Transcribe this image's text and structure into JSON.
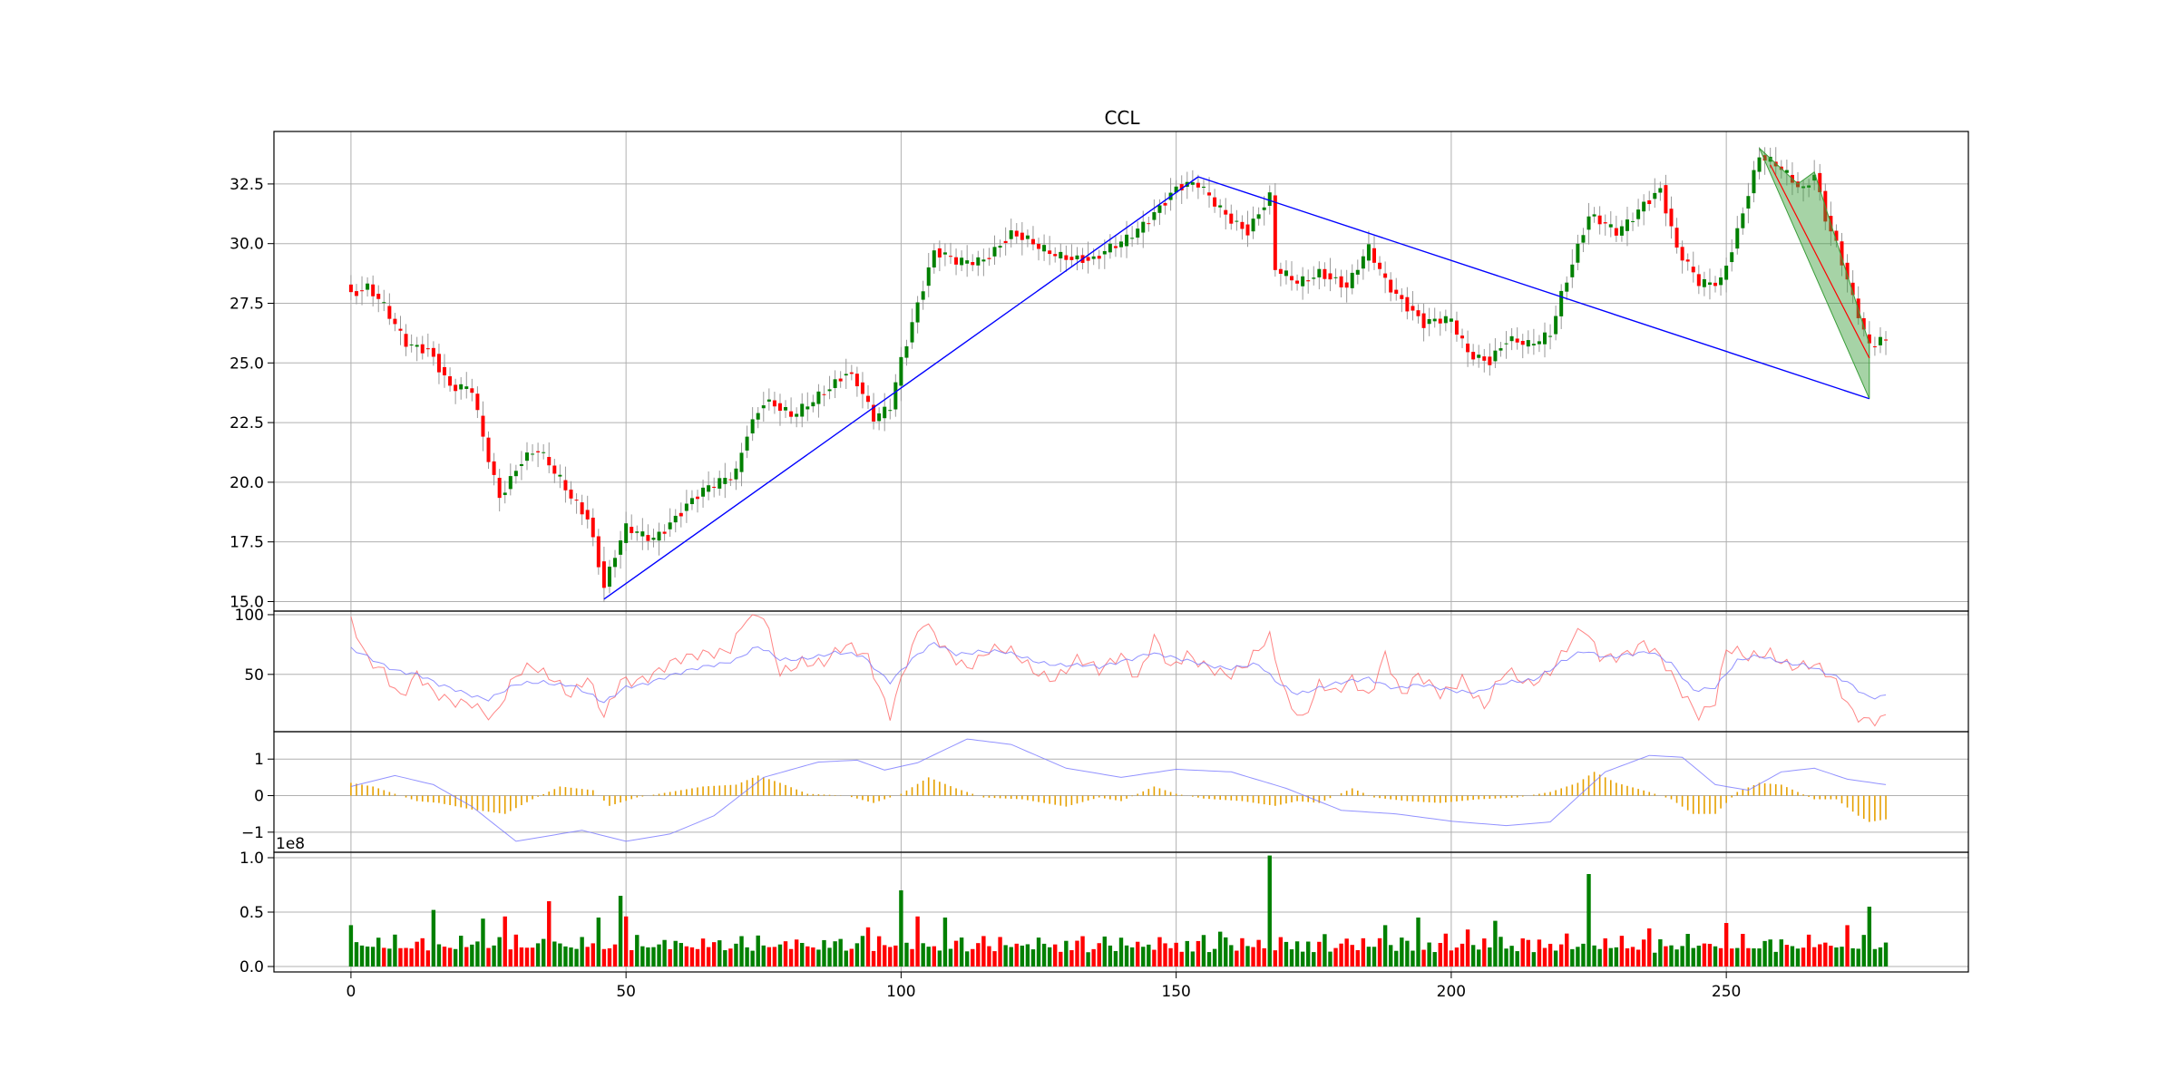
{
  "chart_data": [
    {
      "type": "candlestick",
      "title": "CCL",
      "grid": true,
      "xlim": [
        -14,
        294
      ],
      "ylim": [
        14.6,
        34.7
      ],
      "x_ticks": [
        0,
        50,
        100,
        150,
        200,
        250
      ],
      "y_ticks": [
        "15.0",
        "17.5",
        "20.0",
        "22.5",
        "25.0",
        "27.5",
        "30.0",
        "32.5"
      ],
      "colors": {
        "up": "#008000",
        "down": "#ff0000",
        "trendline": "#0000ff",
        "pattern_fill": "#3a9e3a"
      },
      "close_anchors": [
        [
          0,
          27.8
        ],
        [
          3,
          28.0
        ],
        [
          6,
          27.3
        ],
        [
          10,
          26.0
        ],
        [
          14,
          25.6
        ],
        [
          18,
          23.8
        ],
        [
          22,
          23.9
        ],
        [
          24,
          22.0
        ],
        [
          27,
          19.5
        ],
        [
          31,
          20.8
        ],
        [
          34,
          21.2
        ],
        [
          38,
          20.2
        ],
        [
          43,
          18.6
        ],
        [
          46,
          15.5
        ],
        [
          48,
          16.8
        ],
        [
          50,
          18.0
        ],
        [
          55,
          17.8
        ],
        [
          60,
          18.7
        ],
        [
          65,
          19.7
        ],
        [
          70,
          20.6
        ],
        [
          72,
          22.2
        ],
        [
          75,
          23.3
        ],
        [
          80,
          22.7
        ],
        [
          85,
          23.8
        ],
        [
          90,
          24.5
        ],
        [
          92,
          24.0
        ],
        [
          95,
          22.6
        ],
        [
          98,
          23.3
        ],
        [
          100,
          25.3
        ],
        [
          103,
          27.5
        ],
        [
          106,
          29.5
        ],
        [
          110,
          29.2
        ],
        [
          115,
          29.5
        ],
        [
          120,
          30.3
        ],
        [
          125,
          29.8
        ],
        [
          130,
          29.6
        ],
        [
          135,
          29.2
        ],
        [
          140,
          30.0
        ],
        [
          145,
          31.2
        ],
        [
          150,
          32.2
        ],
        [
          154,
          32.4
        ],
        [
          158,
          31.6
        ],
        [
          163,
          30.5
        ],
        [
          167,
          31.8
        ],
        [
          168,
          28.8
        ],
        [
          172,
          28.5
        ],
        [
          176,
          28.9
        ],
        [
          181,
          28.0
        ],
        [
          185,
          29.8
        ],
        [
          188,
          28.6
        ],
        [
          192,
          27.4
        ],
        [
          195,
          26.5
        ],
        [
          200,
          26.8
        ],
        [
          203,
          25.6
        ],
        [
          207,
          25.1
        ],
        [
          210,
          25.8
        ],
        [
          214,
          25.7
        ],
        [
          218,
          26.4
        ],
        [
          220,
          28.0
        ],
        [
          225,
          31.0
        ],
        [
          230,
          30.5
        ],
        [
          235,
          31.8
        ],
        [
          238,
          32.2
        ],
        [
          241,
          29.6
        ],
        [
          245,
          28.4
        ],
        [
          249,
          28.6
        ],
        [
          252,
          30.5
        ],
        [
          256,
          33.5
        ],
        [
          260,
          33.2
        ],
        [
          264,
          32.4
        ],
        [
          266,
          33.0
        ],
        [
          268,
          31.0
        ],
        [
          270,
          29.8
        ],
        [
          273,
          27.6
        ],
        [
          276,
          25.8
        ],
        [
          278,
          26.2
        ],
        [
          279,
          26.0
        ]
      ],
      "trendlines": [
        {
          "x": [
            46,
            154
          ],
          "y": [
            15.1,
            32.8
          ]
        },
        {
          "x": [
            154,
            276
          ],
          "y": [
            32.8,
            23.5
          ]
        }
      ],
      "pattern": {
        "upper": [
          [
            256,
            34.0
          ],
          [
            263,
            32.5
          ],
          [
            266,
            33.0
          ],
          [
            276,
            25.8
          ]
        ],
        "lower": [
          [
            256,
            34.0
          ],
          [
            276,
            23.5
          ]
        ],
        "redline": [
          [
            258,
            33.3
          ],
          [
            276,
            25.2
          ]
        ]
      }
    },
    {
      "type": "line",
      "ylim": [
        2,
        103
      ],
      "y_ticks": [
        "100",
        "50"
      ],
      "series_colors": [
        "#ff6666",
        "#7777ff"
      ],
      "anchors_red": [
        [
          0,
          90
        ],
        [
          3,
          60
        ],
        [
          6,
          55
        ],
        [
          9,
          35
        ],
        [
          12,
          50
        ],
        [
          15,
          30
        ],
        [
          18,
          25
        ],
        [
          22,
          30
        ],
        [
          26,
          15
        ],
        [
          30,
          45
        ],
        [
          33,
          55
        ],
        [
          37,
          50
        ],
        [
          40,
          35
        ],
        [
          43,
          45
        ],
        [
          46,
          10
        ],
        [
          49,
          45
        ],
        [
          53,
          50
        ],
        [
          57,
          55
        ],
        [
          61,
          60
        ],
        [
          65,
          70
        ],
        [
          69,
          75
        ],
        [
          72,
          97
        ],
        [
          75,
          95
        ],
        [
          78,
          50
        ],
        [
          82,
          65
        ],
        [
          86,
          60
        ],
        [
          90,
          70
        ],
        [
          94,
          65
        ],
        [
          98,
          20
        ],
        [
          101,
          60
        ],
        [
          104,
          90
        ],
        [
          108,
          70
        ],
        [
          112,
          60
        ],
        [
          116,
          70
        ],
        [
          120,
          65
        ],
        [
          124,
          55
        ],
        [
          128,
          50
        ],
        [
          132,
          60
        ],
        [
          136,
          50
        ],
        [
          140,
          70
        ],
        [
          143,
          50
        ],
        [
          146,
          80
        ],
        [
          149,
          50
        ],
        [
          152,
          65
        ],
        [
          156,
          60
        ],
        [
          160,
          50
        ],
        [
          163,
          55
        ],
        [
          167,
          80
        ],
        [
          170,
          35
        ],
        [
          173,
          15
        ],
        [
          176,
          40
        ],
        [
          179,
          30
        ],
        [
          182,
          45
        ],
        [
          185,
          35
        ],
        [
          188,
          70
        ],
        [
          191,
          30
        ],
        [
          194,
          45
        ],
        [
          198,
          35
        ],
        [
          202,
          50
        ],
        [
          206,
          20
        ],
        [
          210,
          50
        ],
        [
          214,
          45
        ],
        [
          218,
          55
        ],
        [
          221,
          70
        ],
        [
          224,
          85
        ],
        [
          227,
          65
        ],
        [
          231,
          70
        ],
        [
          235,
          75
        ],
        [
          238,
          60
        ],
        [
          241,
          40
        ],
        [
          245,
          20
        ],
        [
          248,
          30
        ],
        [
          250,
          70
        ],
        [
          254,
          60
        ],
        [
          258,
          70
        ],
        [
          262,
          60
        ],
        [
          266,
          55
        ],
        [
          270,
          40
        ],
        [
          273,
          20
        ],
        [
          276,
          15
        ],
        [
          279,
          14
        ]
      ],
      "anchors_blue": [
        [
          0,
          70
        ],
        [
          4,
          62
        ],
        [
          8,
          55
        ],
        [
          12,
          50
        ],
        [
          16,
          40
        ],
        [
          20,
          36
        ],
        [
          25,
          30
        ],
        [
          30,
          40
        ],
        [
          35,
          44
        ],
        [
          40,
          42
        ],
        [
          46,
          25
        ],
        [
          50,
          40
        ],
        [
          55,
          45
        ],
        [
          60,
          50
        ],
        [
          65,
          58
        ],
        [
          70,
          63
        ],
        [
          74,
          72
        ],
        [
          78,
          62
        ],
        [
          83,
          65
        ],
        [
          88,
          67
        ],
        [
          93,
          65
        ],
        [
          98,
          45
        ],
        [
          102,
          62
        ],
        [
          106,
          75
        ],
        [
          110,
          68
        ],
        [
          114,
          70
        ],
        [
          118,
          68
        ],
        [
          124,
          62
        ],
        [
          130,
          58
        ],
        [
          136,
          55
        ],
        [
          140,
          62
        ],
        [
          145,
          68
        ],
        [
          150,
          62
        ],
        [
          155,
          60
        ],
        [
          160,
          55
        ],
        [
          165,
          57
        ],
        [
          168,
          45
        ],
        [
          172,
          35
        ],
        [
          176,
          38
        ],
        [
          180,
          42
        ],
        [
          185,
          48
        ],
        [
          190,
          38
        ],
        [
          195,
          40
        ],
        [
          200,
          38
        ],
        [
          205,
          35
        ],
        [
          210,
          42
        ],
        [
          215,
          47
        ],
        [
          220,
          60
        ],
        [
          224,
          68
        ],
        [
          228,
          65
        ],
        [
          232,
          68
        ],
        [
          236,
          68
        ],
        [
          240,
          58
        ],
        [
          244,
          38
        ],
        [
          248,
          40
        ],
        [
          252,
          60
        ],
        [
          256,
          65
        ],
        [
          260,
          62
        ],
        [
          264,
          58
        ],
        [
          268,
          50
        ],
        [
          272,
          44
        ],
        [
          276,
          32
        ],
        [
          279,
          32
        ]
      ]
    },
    {
      "type": "line+bar",
      "ylim": [
        -1.55,
        1.75
      ],
      "y_ticks": [
        "1",
        "0",
        "−1"
      ],
      "colors": {
        "line": "#7777ff",
        "hist": "#e6a000"
      },
      "anchors_line": [
        [
          0,
          0.25
        ],
        [
          8,
          0.55
        ],
        [
          15,
          0.3
        ],
        [
          22,
          -0.3
        ],
        [
          30,
          -1.25
        ],
        [
          36,
          -1.1
        ],
        [
          42,
          -0.95
        ],
        [
          50,
          -1.25
        ],
        [
          58,
          -1.05
        ],
        [
          66,
          -0.55
        ],
        [
          75,
          0.5
        ],
        [
          85,
          0.92
        ],
        [
          92,
          0.97
        ],
        [
          97,
          0.7
        ],
        [
          103,
          0.9
        ],
        [
          112,
          1.55
        ],
        [
          120,
          1.4
        ],
        [
          130,
          0.75
        ],
        [
          140,
          0.5
        ],
        [
          150,
          0.72
        ],
        [
          160,
          0.65
        ],
        [
          170,
          0.2
        ],
        [
          180,
          -0.4
        ],
        [
          190,
          -0.5
        ],
        [
          200,
          -0.7
        ],
        [
          210,
          -0.82
        ],
        [
          218,
          -0.72
        ],
        [
          228,
          0.65
        ],
        [
          236,
          1.1
        ],
        [
          242,
          1.05
        ],
        [
          248,
          0.3
        ],
        [
          254,
          0.15
        ],
        [
          260,
          0.65
        ],
        [
          266,
          0.75
        ],
        [
          272,
          0.45
        ],
        [
          279,
          0.3
        ]
      ],
      "anchors_hist": [
        [
          0,
          0.35
        ],
        [
          4,
          0.25
        ],
        [
          8,
          0.05
        ],
        [
          12,
          -0.15
        ],
        [
          16,
          -0.2
        ],
        [
          22,
          -0.38
        ],
        [
          28,
          -0.5
        ],
        [
          33,
          -0.1
        ],
        [
          38,
          0.25
        ],
        [
          44,
          0.15
        ],
        [
          47,
          -0.28
        ],
        [
          52,
          -0.05
        ],
        [
          58,
          0.1
        ],
        [
          64,
          0.25
        ],
        [
          70,
          0.3
        ],
        [
          74,
          0.55
        ],
        [
          78,
          0.35
        ],
        [
          83,
          0.05
        ],
        [
          90,
          0.0
        ],
        [
          95,
          -0.2
        ],
        [
          100,
          0.05
        ],
        [
          105,
          0.5
        ],
        [
          110,
          0.2
        ],
        [
          115,
          -0.05
        ],
        [
          122,
          -0.1
        ],
        [
          130,
          -0.3
        ],
        [
          136,
          -0.05
        ],
        [
          140,
          -0.15
        ],
        [
          146,
          0.25
        ],
        [
          150,
          0.05
        ],
        [
          155,
          -0.08
        ],
        [
          162,
          -0.15
        ],
        [
          168,
          -0.28
        ],
        [
          172,
          -0.15
        ],
        [
          176,
          -0.2
        ],
        [
          182,
          0.2
        ],
        [
          186,
          -0.05
        ],
        [
          192,
          -0.15
        ],
        [
          198,
          -0.2
        ],
        [
          205,
          -0.1
        ],
        [
          212,
          -0.05
        ],
        [
          218,
          0.1
        ],
        [
          223,
          0.35
        ],
        [
          226,
          0.65
        ],
        [
          230,
          0.35
        ],
        [
          236,
          0.1
        ],
        [
          240,
          -0.1
        ],
        [
          244,
          -0.5
        ],
        [
          248,
          -0.5
        ],
        [
          252,
          0.1
        ],
        [
          256,
          0.35
        ],
        [
          260,
          0.3
        ],
        [
          266,
          -0.1
        ],
        [
          270,
          -0.1
        ],
        [
          274,
          -0.55
        ],
        [
          276,
          -0.72
        ],
        [
          279,
          -0.65
        ]
      ]
    },
    {
      "type": "bar",
      "ylim": [
        -0.05,
        1.05
      ],
      "y_ticks": [
        "1.0",
        "0.5",
        "0.0"
      ],
      "offset_text": "1e8",
      "colors": {
        "up": "#008000",
        "down": "#ff0000"
      },
      "spikes": [
        [
          0,
          0.38
        ],
        [
          15,
          0.52
        ],
        [
          24,
          0.44
        ],
        [
          28,
          0.46
        ],
        [
          36,
          0.6
        ],
        [
          45,
          0.45
        ],
        [
          49,
          0.65
        ],
        [
          50,
          0.46
        ],
        [
          94,
          0.36
        ],
        [
          100,
          0.7
        ],
        [
          103,
          0.46
        ],
        [
          108,
          0.45
        ],
        [
          158,
          0.32
        ],
        [
          167,
          1.02
        ],
        [
          188,
          0.38
        ],
        [
          194,
          0.45
        ],
        [
          203,
          0.34
        ],
        [
          208,
          0.42
        ],
        [
          225,
          0.85
        ],
        [
          236,
          0.35
        ],
        [
          250,
          0.4
        ],
        [
          253,
          0.3
        ],
        [
          272,
          0.38
        ],
        [
          276,
          0.55
        ]
      ]
    }
  ]
}
